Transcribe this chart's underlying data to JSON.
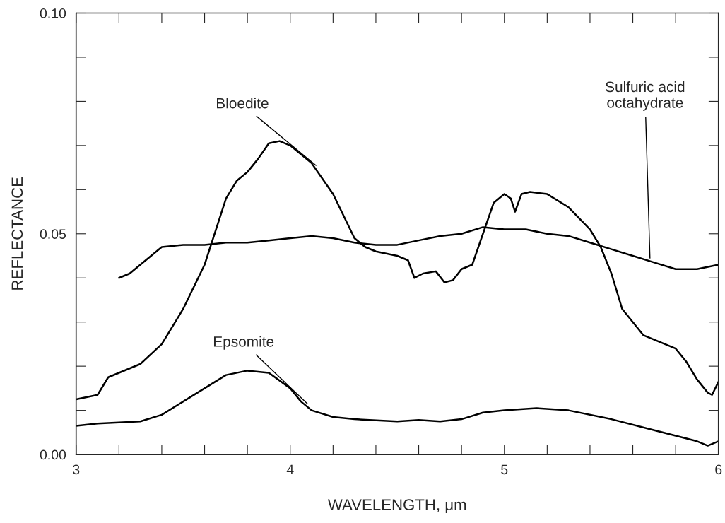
{
  "chart_data": {
    "type": "line",
    "xlabel": "WAVELENGTH, μm",
    "ylabel": "REFLECTANCE",
    "xlim": [
      3,
      6
    ],
    "ylim": [
      0,
      0.1
    ],
    "xticks": [
      3,
      {
        "value": 3.2,
        "label": null
      },
      {
        "value": 3.4,
        "label": null
      },
      {
        "value": 3.6,
        "label": null
      },
      {
        "value": 3.8,
        "label": null
      },
      4,
      {
        "value": 4.2,
        "label": null
      },
      {
        "value": 4.4,
        "label": null
      },
      {
        "value": 4.6,
        "label": null
      },
      {
        "value": 4.8,
        "label": null
      },
      5,
      {
        "value": 5.2,
        "label": null
      },
      {
        "value": 5.4,
        "label": null
      },
      {
        "value": 5.6,
        "label": null
      },
      {
        "value": 5.8,
        "label": null
      },
      6
    ],
    "yticks": [
      {
        "value": 0,
        "label": "0.00"
      },
      {
        "value": 0.01,
        "label": null
      },
      {
        "value": 0.02,
        "label": null
      },
      {
        "value": 0.03,
        "label": null
      },
      {
        "value": 0.04,
        "label": null
      },
      {
        "value": 0.05,
        "label": "0.05"
      },
      {
        "value": 0.06,
        "label": null
      },
      {
        "value": 0.07,
        "label": null
      },
      {
        "value": 0.08,
        "label": null
      },
      {
        "value": 0.09,
        "label": null
      },
      {
        "value": 0.1,
        "label": "0.10"
      }
    ],
    "grid": false,
    "legend": false,
    "series": [
      {
        "color": "#000000",
        "x": [
          3.0,
          3.1,
          3.15,
          3.2,
          3.3,
          3.4,
          3.5,
          3.6,
          3.7,
          3.75,
          3.8,
          3.85,
          3.9,
          3.95,
          4.0,
          4.1,
          4.2,
          4.3,
          4.35,
          4.4,
          4.5,
          4.55,
          4.58,
          4.62,
          4.68,
          4.72,
          4.76,
          4.8,
          4.85,
          4.9,
          4.95,
          5.0,
          5.03,
          5.05,
          5.08,
          5.12,
          5.2,
          5.3,
          5.4,
          5.45,
          5.5,
          5.55,
          5.6,
          5.65,
          5.7,
          5.8,
          5.85,
          5.9,
          5.95,
          5.97,
          6.0
        ],
        "values": [
          0.0125,
          0.0135,
          0.0175,
          0.0185,
          0.0205,
          0.025,
          0.033,
          0.043,
          0.058,
          0.062,
          0.064,
          0.067,
          0.0705,
          0.071,
          0.07,
          0.066,
          0.059,
          0.049,
          0.047,
          0.046,
          0.045,
          0.044,
          0.04,
          0.041,
          0.0415,
          0.039,
          0.0395,
          0.042,
          0.043,
          0.05,
          0.057,
          0.059,
          0.058,
          0.055,
          0.059,
          0.0595,
          0.059,
          0.056,
          0.051,
          0.047,
          0.041,
          0.033,
          0.03,
          0.027,
          0.026,
          0.024,
          0.021,
          0.017,
          0.014,
          0.0135,
          0.0165
        ]
      },
      {
        "color": "#000000",
        "x": [
          3.2,
          3.25,
          3.3,
          3.4,
          3.5,
          3.6,
          3.7,
          3.8,
          3.9,
          4.0,
          4.1,
          4.2,
          4.3,
          4.4,
          4.5,
          4.6,
          4.7,
          4.8,
          4.9,
          5.0,
          5.1,
          5.2,
          5.3,
          5.4,
          5.5,
          5.6,
          5.7,
          5.8,
          5.9,
          6.0
        ],
        "values": [
          0.04,
          0.041,
          0.043,
          0.047,
          0.0475,
          0.0475,
          0.048,
          0.048,
          0.0485,
          0.049,
          0.0495,
          0.049,
          0.048,
          0.0475,
          0.0475,
          0.0485,
          0.0495,
          0.05,
          0.0515,
          0.051,
          0.051,
          0.05,
          0.0495,
          0.048,
          0.0465,
          0.045,
          0.0435,
          0.042,
          0.042,
          0.043
        ]
      },
      {
        "color": "#000000",
        "x": [
          3.0,
          3.1,
          3.3,
          3.4,
          3.5,
          3.6,
          3.7,
          3.8,
          3.9,
          4.0,
          4.05,
          4.1,
          4.2,
          4.3,
          4.5,
          4.6,
          4.7,
          4.8,
          4.9,
          5.0,
          5.15,
          5.3,
          5.5,
          5.7,
          5.9,
          5.95,
          6.0
        ],
        "values": [
          0.0065,
          0.007,
          0.0075,
          0.009,
          0.012,
          0.015,
          0.018,
          0.019,
          0.0185,
          0.015,
          0.012,
          0.01,
          0.0085,
          0.008,
          0.0075,
          0.0078,
          0.0075,
          0.008,
          0.0095,
          0.01,
          0.0105,
          0.01,
          0.008,
          0.0055,
          0.003,
          0.002,
          0.003
        ]
      }
    ],
    "annotations": [
      {
        "text": "Bloedite",
        "x": 4.12,
        "y": 0.0655
      },
      {
        "text": "Sulfuric acid\noctahydrate",
        "x": 5.68,
        "y": 0.0445
      },
      {
        "text": "Epsomite",
        "x": 4.08,
        "y": 0.0115
      }
    ]
  }
}
